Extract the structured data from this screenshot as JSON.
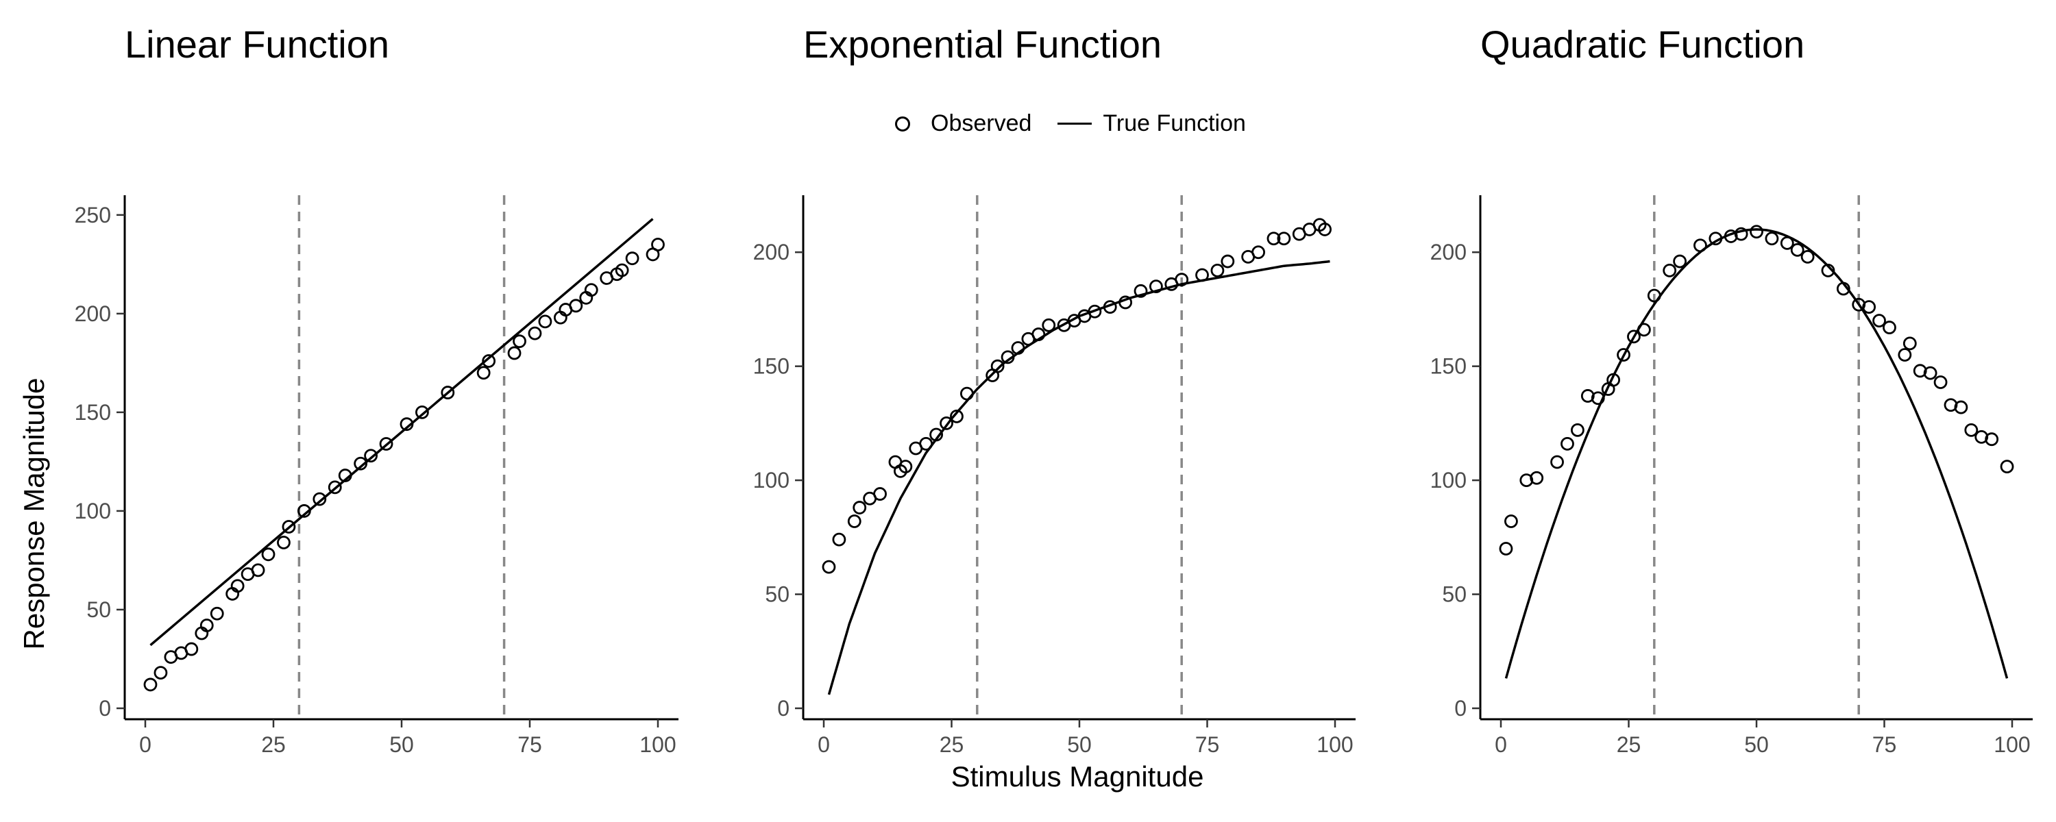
{
  "legend": {
    "observed_label": "Observed",
    "true_label": "True Function"
  },
  "axes": {
    "xlabel": "Stimulus Magnitude",
    "ylabel": "Response Magnitude"
  },
  "colors": {
    "reference_line": "#888888",
    "ink": "#000000"
  },
  "chart_data": [
    {
      "type": "scatter",
      "title": "Linear Function",
      "xlim": [
        0,
        100
      ],
      "ylim": [
        0,
        250
      ],
      "xticks": [
        0,
        25,
        50,
        75,
        100
      ],
      "yticks": [
        0,
        50,
        100,
        150,
        200,
        250
      ],
      "vlines": [
        30,
        70
      ],
      "grid": false,
      "legend": "top",
      "series": [
        {
          "name": "Observed",
          "kind": "points",
          "x": [
            1,
            3,
            5,
            7,
            9,
            11,
            12,
            14,
            17,
            18,
            20,
            22,
            24,
            27,
            28,
            31,
            34,
            37,
            39,
            42,
            44,
            47,
            51,
            54,
            59,
            66,
            67,
            72,
            73,
            76,
            78,
            81,
            82,
            84,
            86,
            87,
            90,
            92,
            93,
            95,
            99,
            100
          ],
          "y": [
            12,
            18,
            26,
            28,
            30,
            38,
            42,
            48,
            58,
            62,
            68,
            70,
            78,
            84,
            92,
            100,
            106,
            112,
            118,
            124,
            128,
            134,
            144,
            150,
            160,
            170,
            176,
            180,
            186,
            190,
            196,
            198,
            202,
            204,
            208,
            212,
            218,
            220,
            222,
            228,
            230,
            235
          ]
        },
        {
          "name": "True Function",
          "kind": "line",
          "x": [
            1,
            99
          ],
          "y": [
            32,
            248
          ]
        }
      ]
    },
    {
      "type": "scatter",
      "title": "Exponential Function",
      "xlim": [
        0,
        100
      ],
      "ylim": [
        0,
        220
      ],
      "xticks": [
        0,
        25,
        50,
        75,
        100
      ],
      "yticks": [
        0,
        50,
        100,
        150,
        200
      ],
      "vlines": [
        30,
        70
      ],
      "grid": false,
      "legend": "top",
      "series": [
        {
          "name": "Observed",
          "kind": "points",
          "x": [
            1,
            3,
            6,
            7,
            9,
            11,
            14,
            15,
            16,
            18,
            20,
            22,
            24,
            26,
            28,
            33,
            34,
            36,
            38,
            40,
            42,
            44,
            47,
            49,
            51,
            53,
            56,
            59,
            62,
            65,
            68,
            70,
            74,
            77,
            79,
            83,
            85,
            88,
            90,
            93,
            95,
            97,
            98
          ],
          "y": [
            62,
            74,
            82,
            88,
            92,
            94,
            108,
            104,
            106,
            114,
            116,
            120,
            125,
            128,
            138,
            146,
            150,
            154,
            158,
            162,
            164,
            168,
            168,
            170,
            172,
            174,
            176,
            178,
            183,
            185,
            186,
            188,
            190,
            192,
            196,
            198,
            200,
            206,
            206,
            208,
            210,
            212,
            210
          ]
        },
        {
          "name": "True Function",
          "kind": "curve",
          "function": "exponential",
          "x_range": [
            1,
            99
          ],
          "x": [
            1,
            5,
            10,
            15,
            20,
            25,
            30,
            35,
            40,
            45,
            50,
            55,
            60,
            65,
            70,
            75,
            80,
            85,
            90,
            95,
            99
          ],
          "y": [
            6,
            37,
            68,
            92,
            112,
            127,
            140,
            151,
            159,
            166,
            172,
            176,
            180,
            183,
            186,
            188,
            190,
            192,
            194,
            195,
            196
          ]
        }
      ]
    },
    {
      "type": "scatter",
      "title": "Quadratic Function",
      "xlim": [
        0,
        100
      ],
      "ylim": [
        0,
        220
      ],
      "xticks": [
        0,
        25,
        50,
        75,
        100
      ],
      "yticks": [
        0,
        50,
        100,
        150,
        200
      ],
      "vlines": [
        30,
        70
      ],
      "grid": false,
      "legend": "top",
      "series": [
        {
          "name": "Observed",
          "kind": "points",
          "x": [
            1,
            2,
            5,
            7,
            11,
            13,
            15,
            17,
            19,
            21,
            22,
            24,
            26,
            28,
            30,
            33,
            35,
            39,
            42,
            45,
            47,
            50,
            53,
            56,
            58,
            60,
            64,
            67,
            70,
            72,
            74,
            76,
            79,
            80,
            82,
            84,
            86,
            88,
            90,
            92,
            94,
            96,
            99
          ],
          "y": [
            70,
            82,
            100,
            101,
            108,
            116,
            122,
            137,
            136,
            140,
            144,
            155,
            163,
            166,
            181,
            192,
            196,
            203,
            206,
            207,
            208,
            209,
            206,
            204,
            201,
            198,
            192,
            184,
            177,
            176,
            170,
            167,
            155,
            160,
            148,
            147,
            143,
            133,
            132,
            122,
            119,
            118,
            106
          ]
        },
        {
          "name": "True Function",
          "kind": "curve",
          "function": "quadratic",
          "x_range": [
            1,
            99
          ],
          "x": [
            1,
            5,
            10,
            15,
            20,
            25,
            30,
            35,
            40,
            45,
            50,
            55,
            60,
            65,
            70,
            75,
            80,
            85,
            90,
            95,
            99
          ],
          "y": [
            11,
            47,
            84,
            117,
            143,
            165,
            181,
            194,
            202,
            207,
            210,
            207,
            202,
            194,
            181,
            165,
            143,
            117,
            84,
            47,
            5
          ]
        }
      ]
    }
  ]
}
